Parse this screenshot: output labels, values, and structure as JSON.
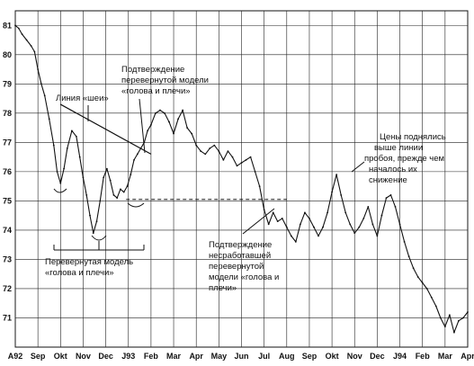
{
  "chart_data": {
    "type": "line",
    "title": "",
    "xlabel": "",
    "ylabel": "",
    "ylim": [
      70,
      81.5
    ],
    "grid": true,
    "x_ticks": [
      "A92",
      "Sep",
      "Okt",
      "Nov",
      "Dec",
      "J93",
      "Feb",
      "Mar",
      "Apr",
      "May",
      "Jun",
      "Jul",
      "Aug",
      "Sep",
      "Okt",
      "Nov",
      "Dec",
      "J94",
      "Feb",
      "Mar",
      "Apr"
    ],
    "y_ticks": [
      81,
      80,
      79,
      78,
      77,
      76,
      75,
      74,
      73,
      72,
      71
    ],
    "series": [
      {
        "x": [
          0,
          0.15,
          0.3,
          0.5,
          0.7,
          0.85,
          1.0,
          1.15,
          1.3,
          1.5,
          1.7,
          1.85,
          2.0,
          2.15,
          2.3,
          2.5,
          2.7,
          2.85,
          3.0,
          3.15,
          3.3,
          3.45,
          3.6,
          3.75,
          3.9,
          4.05,
          4.2,
          4.35,
          4.5,
          4.65,
          4.8,
          4.95,
          5.1,
          5.25,
          5.4,
          5.55,
          5.7,
          5.85,
          6.0,
          6.2,
          6.4,
          6.6,
          6.8,
          7.0,
          7.2,
          7.4,
          7.6,
          7.8,
          8.0,
          8.2,
          8.4,
          8.6,
          8.8,
          9.0,
          9.2,
          9.4,
          9.6,
          9.8,
          10.0,
          10.2,
          10.4,
          10.6,
          10.8,
          11.0,
          11.2,
          11.4,
          11.6,
          11.8,
          12.0,
          12.2,
          12.4,
          12.6,
          12.8,
          13.0,
          13.2,
          13.4,
          13.6,
          13.8,
          14.0,
          14.2,
          14.4,
          14.6,
          14.8,
          15.0,
          15.2,
          15.4,
          15.6,
          15.8,
          16.0,
          16.2,
          16.4,
          16.6,
          16.8,
          17.0,
          17.2,
          17.4,
          17.6,
          17.8,
          18.0,
          18.2,
          18.4,
          18.6,
          18.8,
          19.0,
          19.2,
          19.4,
          19.6,
          19.8,
          20.0
        ],
        "y": [
          81.0,
          80.9,
          80.7,
          80.5,
          80.3,
          80.1,
          79.5,
          79.0,
          78.6,
          77.8,
          76.9,
          76.0,
          75.6,
          76.1,
          76.8,
          77.4,
          77.2,
          76.5,
          75.8,
          75.2,
          74.5,
          73.9,
          74.3,
          75.0,
          75.8,
          76.1,
          75.7,
          75.2,
          75.1,
          75.4,
          75.3,
          75.5,
          75.9,
          76.4,
          76.6,
          76.8,
          77.0,
          77.4,
          77.6,
          78.0,
          78.1,
          78.0,
          77.7,
          77.3,
          77.8,
          78.1,
          77.5,
          77.3,
          76.9,
          76.7,
          76.6,
          76.8,
          76.9,
          76.7,
          76.4,
          76.7,
          76.5,
          76.2,
          76.3,
          76.4,
          76.5,
          76.0,
          75.5,
          74.7,
          74.2,
          74.6,
          74.3,
          74.4,
          74.1,
          73.8,
          73.6,
          74.2,
          74.6,
          74.4,
          74.1,
          73.8,
          74.1,
          74.6,
          75.3,
          75.9,
          75.2,
          74.6,
          74.2,
          73.9,
          74.1,
          74.4,
          74.8,
          74.2,
          73.8,
          74.5,
          75.1,
          75.2,
          74.8,
          74.2,
          73.6,
          73.1,
          72.7,
          72.4,
          72.2,
          72.0,
          71.7,
          71.4,
          71.0,
          70.7,
          71.1,
          70.5,
          70.9,
          71.0,
          71.2
        ]
      }
    ],
    "neckline_1": {
      "x": [
        2.0,
        6.0
      ],
      "y": [
        78.3,
        76.6
      ]
    },
    "breakout_level": {
      "x": [
        4.9,
        12.0
      ],
      "y": [
        75.05,
        75.05
      ]
    },
    "annotations": [
      "Линия «шеи»",
      "Подтверждение перевернутой модели «голова и плечи»",
      "Перевернутая модель «голова и плечи»",
      "Подтверждение несработавшей перевернутой модели «голова и плечи»",
      "Цены поднялись выше линии пробоя, прежде чем началось их снижение"
    ]
  }
}
